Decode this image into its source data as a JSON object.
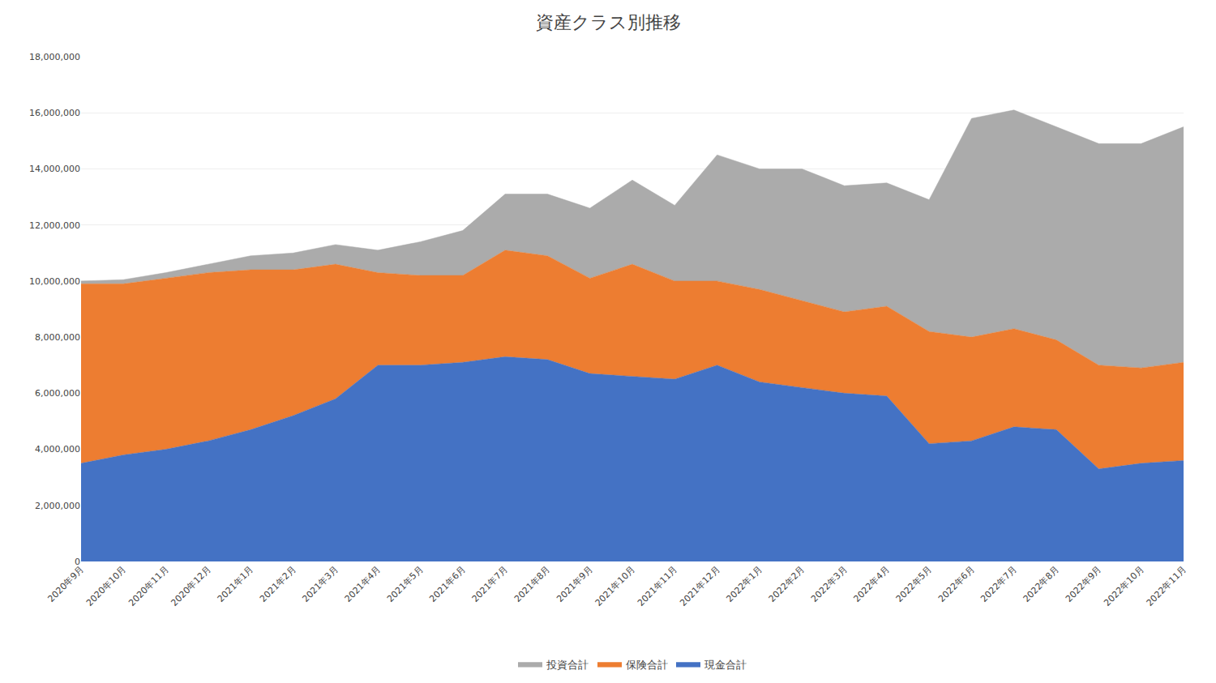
{
  "chart_data": {
    "type": "area",
    "stacked": true,
    "title": "資産クラス別推移",
    "categories": [
      "2020年9月",
      "2020年10月",
      "2020年11月",
      "2020年12月",
      "2021年1月",
      "2021年2月",
      "2021年3月",
      "2021年4月",
      "2021年5月",
      "2021年6月",
      "2021年7月",
      "2021年8月",
      "2021年9月",
      "2021年10月",
      "2021年11月",
      "2021年12月",
      "2022年1月",
      "2022年2月",
      "2022年3月",
      "2022年4月",
      "2022年5月",
      "2022年6月",
      "2022年7月",
      "2022年8月",
      "2022年9月",
      "2022年10月",
      "2022年11月"
    ],
    "series": [
      {
        "name": "現金合計",
        "color": "#4472C4",
        "values": [
          3500000,
          3800000,
          4000000,
          4300000,
          4700000,
          5200000,
          5800000,
          7000000,
          7000000,
          7100000,
          7300000,
          7200000,
          6700000,
          6600000,
          6500000,
          7000000,
          6400000,
          6200000,
          6000000,
          5900000,
          4200000,
          4300000,
          4800000,
          4700000,
          3300000,
          3500000,
          3600000
        ]
      },
      {
        "name": "保険合計",
        "color": "#ED7D31",
        "values": [
          6400000,
          6100000,
          6100000,
          6000000,
          5700000,
          5200000,
          4800000,
          3300000,
          3200000,
          3100000,
          3800000,
          3700000,
          3400000,
          4000000,
          3500000,
          3000000,
          3300000,
          3100000,
          2900000,
          3200000,
          4000000,
          3700000,
          3500000,
          3200000,
          3700000,
          3400000,
          3500000
        ]
      },
      {
        "name": "投資合計",
        "color": "#ABABAB",
        "values": [
          100000,
          150000,
          200000,
          300000,
          500000,
          600000,
          700000,
          800000,
          1200000,
          1600000,
          2000000,
          2200000,
          2500000,
          3000000,
          2700000,
          4500000,
          4300000,
          4700000,
          4500000,
          4400000,
          4700000,
          7800000,
          7800000,
          7600000,
          7900000,
          8000000,
          8400000
        ]
      }
    ],
    "ylim": [
      0,
      18000000
    ],
    "yticks": [
      0,
      {
        "value": 2000000,
        "label": "2,000,000"
      },
      {
        "value": 4000000,
        "label": "4,000,000"
      },
      {
        "value": 6000000,
        "label": "6,000,000"
      },
      {
        "value": 8000000,
        "label": "8,000,000"
      },
      {
        "value": 10000000,
        "label": "10,000,000"
      },
      {
        "value": 12000000,
        "label": "12,000,000"
      },
      {
        "value": 14000000,
        "label": "14,000,000"
      },
      {
        "value": 16000000,
        "label": "16,000,000"
      },
      {
        "value": 18000000,
        "label": "18,000,000"
      }
    ],
    "grid": true,
    "legend": "bottom"
  }
}
